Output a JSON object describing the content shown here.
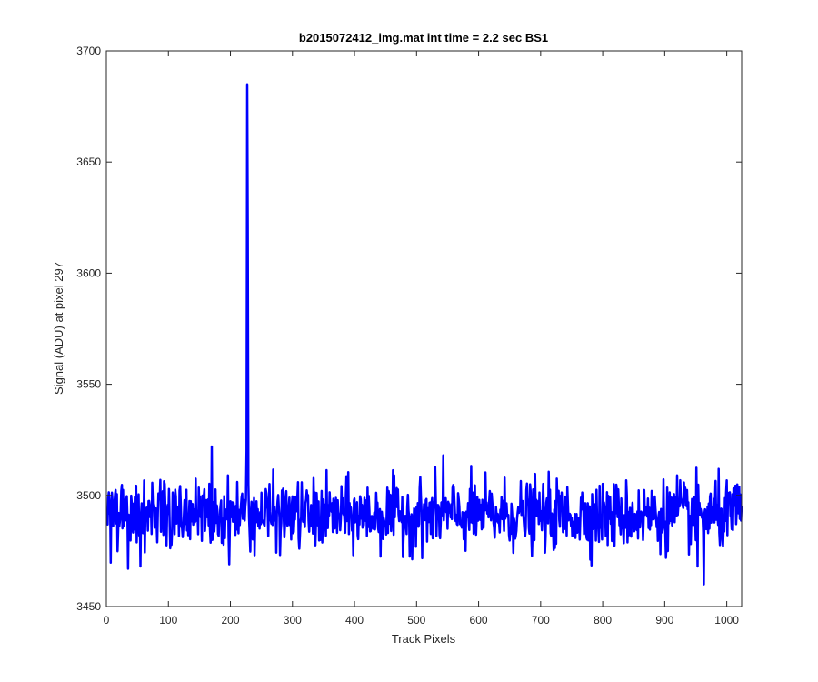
{
  "chart_data": {
    "type": "line",
    "title": "b2015072412_img.mat int time = 2.2 sec   BS1",
    "xlabel": "Track Pixels",
    "ylabel": "Signal (ADU) at pixel 297",
    "xlim": [
      0,
      1024
    ],
    "ylim": [
      3450,
      3700
    ],
    "xticks": [
      0,
      100,
      200,
      300,
      400,
      500,
      600,
      700,
      800,
      900,
      1000
    ],
    "yticks": [
      3450,
      3500,
      3550,
      3600,
      3650,
      3700
    ],
    "grid": false,
    "legend": "none",
    "series": [
      {
        "color": "#0000ff",
        "baseline": 3491,
        "noise_sd": 7.5,
        "n_points": 1024,
        "x_start": 1,
        "features": [
          {
            "x": 225,
            "y": 3498
          },
          {
            "x": 226,
            "y": 3520
          },
          {
            "x": 227,
            "y": 3685
          },
          {
            "x": 228,
            "y": 3622
          },
          {
            "x": 229,
            "y": 3505
          },
          {
            "x": 230,
            "y": 3490
          },
          {
            "x": 170,
            "y": 3522
          },
          {
            "x": 171,
            "y": 3480
          },
          {
            "x": 543,
            "y": 3518
          },
          {
            "x": 963,
            "y": 3460
          },
          {
            "x": 953,
            "y": 3468
          },
          {
            "x": 35,
            "y": 3467
          },
          {
            "x": 55,
            "y": 3468
          },
          {
            "x": 920,
            "y": 3509
          }
        ]
      }
    ]
  }
}
